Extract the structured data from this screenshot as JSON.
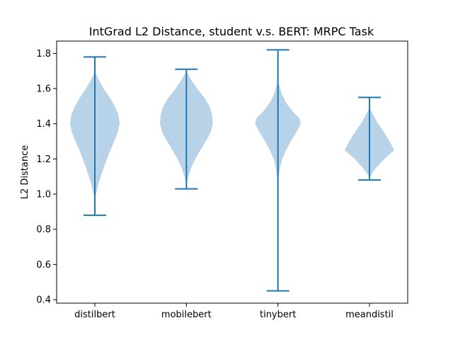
{
  "chart_data": {
    "type": "violin",
    "title": "IntGrad L2 Distance, student v.s. BERT: MRPC Task",
    "xlabel": "",
    "ylabel": "L2 Distance",
    "ylim": [
      0.38,
      1.87
    ],
    "yticks": [
      0.4,
      0.6,
      0.8,
      1.0,
      1.2,
      1.4,
      1.6,
      1.8
    ],
    "ytick_labels": [
      "0.4",
      "0.6",
      "0.8",
      "1.0",
      "1.2",
      "1.4",
      "1.6",
      "1.8"
    ],
    "categories": [
      "distilbert",
      "mobilebert",
      "tinybert",
      "meandistil"
    ],
    "grid": false,
    "colors": {
      "line": "#1f77b4",
      "fill": "#b8d3e8",
      "axis": "#000000"
    },
    "series": [
      {
        "min": 0.88,
        "max": 1.78,
        "density": [
          [
            0.98,
            0.0
          ],
          [
            1.0,
            0.05
          ],
          [
            1.05,
            0.12
          ],
          [
            1.1,
            0.22
          ],
          [
            1.15,
            0.33
          ],
          [
            1.2,
            0.45
          ],
          [
            1.25,
            0.58
          ],
          [
            1.3,
            0.72
          ],
          [
            1.35,
            0.85
          ],
          [
            1.4,
            0.92
          ],
          [
            1.45,
            0.88
          ],
          [
            1.5,
            0.74
          ],
          [
            1.55,
            0.55
          ],
          [
            1.6,
            0.33
          ],
          [
            1.65,
            0.14
          ],
          [
            1.7,
            0.0
          ]
        ]
      },
      {
        "min": 1.03,
        "max": 1.71,
        "density": [
          [
            1.05,
            0.0
          ],
          [
            1.1,
            0.07
          ],
          [
            1.15,
            0.18
          ],
          [
            1.2,
            0.33
          ],
          [
            1.25,
            0.52
          ],
          [
            1.3,
            0.72
          ],
          [
            1.35,
            0.9
          ],
          [
            1.4,
            0.98
          ],
          [
            1.45,
            0.96
          ],
          [
            1.5,
            0.86
          ],
          [
            1.55,
            0.66
          ],
          [
            1.6,
            0.4
          ],
          [
            1.65,
            0.18
          ],
          [
            1.7,
            0.0
          ]
        ]
      },
      {
        "min": 0.45,
        "max": 1.82,
        "density": [
          [
            1.05,
            0.0
          ],
          [
            1.1,
            0.03
          ],
          [
            1.15,
            0.08
          ],
          [
            1.2,
            0.16
          ],
          [
            1.25,
            0.3
          ],
          [
            1.3,
            0.48
          ],
          [
            1.35,
            0.68
          ],
          [
            1.4,
            0.85
          ],
          [
            1.43,
            0.8
          ],
          [
            1.47,
            0.55
          ],
          [
            1.52,
            0.3
          ],
          [
            1.57,
            0.14
          ],
          [
            1.62,
            0.05
          ],
          [
            1.65,
            0.0
          ]
        ]
      },
      {
        "min": 1.08,
        "max": 1.55,
        "density": [
          [
            1.09,
            0.0
          ],
          [
            1.12,
            0.1
          ],
          [
            1.15,
            0.25
          ],
          [
            1.2,
            0.55
          ],
          [
            1.25,
            0.92
          ],
          [
            1.3,
            0.75
          ],
          [
            1.35,
            0.55
          ],
          [
            1.4,
            0.32
          ],
          [
            1.45,
            0.14
          ],
          [
            1.49,
            0.0
          ]
        ]
      }
    ]
  }
}
